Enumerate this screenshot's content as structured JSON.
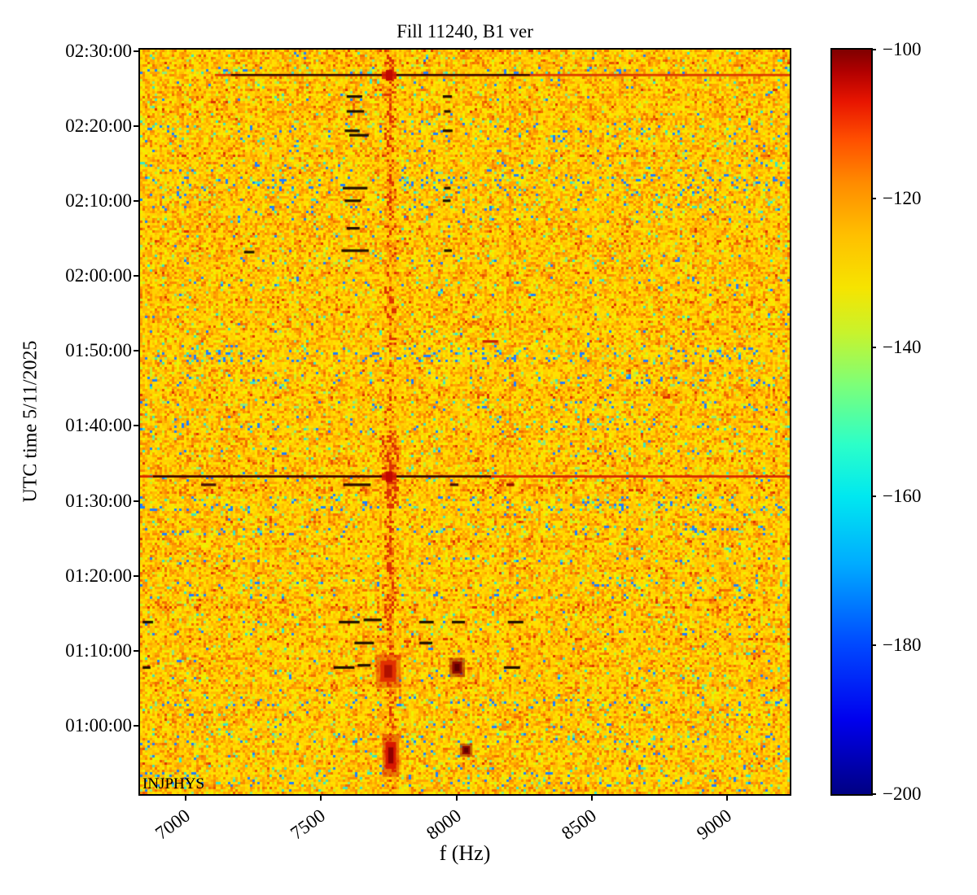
{
  "title": "Fill 11240, B1 ver",
  "watermark": "INJPHYS",
  "axes": {
    "xlabel": "f (Hz)",
    "ylabel": "UTC time 5/11/2025",
    "x_ticks": [
      7000,
      7500,
      8000,
      8500,
      9000
    ],
    "y_ticks": [
      "02:30:00",
      "02:20:00",
      "02:10:00",
      "02:00:00",
      "01:50:00",
      "01:40:00",
      "01:30:00",
      "01:20:00",
      "01:10:00",
      "01:00:00"
    ]
  },
  "colorbar": {
    "vmin": -200,
    "vmax": -100,
    "ticks": [
      -100,
      -120,
      -140,
      -160,
      -180,
      -200
    ],
    "colormap": "jet"
  },
  "chart_data": {
    "type": "heatmap",
    "title": "Fill 11240, B1 ver",
    "xlabel": "f (Hz)",
    "ylabel": "UTC time 5/11/2025",
    "x_range_hz": [
      6832,
      9231
    ],
    "x_tick_values_hz": [
      7000,
      7500,
      8000,
      8500,
      9000
    ],
    "time_axis_utc": {
      "date": "5/11/2025",
      "start_bottom": "00:50:55",
      "end_top": "02:30:10",
      "tick_labels": [
        "02:30:00",
        "02:20:00",
        "02:10:00",
        "02:00:00",
        "01:50:00",
        "01:40:00",
        "01:30:00",
        "01:20:00",
        "01:10:00",
        "01:00:00"
      ]
    },
    "value_scale_db": {
      "min": -200,
      "max": -100,
      "tick_values": [
        -100,
        -120,
        -140,
        -160,
        -180,
        -200
      ],
      "colormap": "jet"
    },
    "background_noise_db_approx": [
      -135,
      -120
    ],
    "annotation_text": "INJPHYS",
    "features": {
      "vertical_band": {
        "description": "persistent red spectral line near 7750 Hz, strongest around 01:29-01:38 and 01:10-01:23 UTC",
        "center_hz": 7750,
        "center_frac": 0.3834,
        "segments": [
          [
            0,
            0.034,
            0.5
          ],
          [
            0.034,
            0.21,
            0.55
          ],
          [
            0.21,
            0.36,
            0.45
          ],
          [
            0.36,
            0.52,
            0.28
          ],
          [
            0.52,
            0.615,
            0.85
          ],
          [
            0.615,
            0.67,
            0.45
          ],
          [
            0.67,
            0.78,
            0.68
          ],
          [
            0.78,
            0.85,
            0.55
          ],
          [
            0.85,
            0.93,
            0.32
          ],
          [
            0.93,
            0.97,
            0.45
          ],
          [
            0.97,
            1.0,
            0.3
          ]
        ]
      },
      "faint_vertical_line": {
        "center_hz": 8195,
        "center_frac": 0.5677,
        "strength": 0.45
      },
      "horizontal_lines": [
        {
          "y": 0.034,
          "utc": "02:26:50",
          "base": "#dd3a00",
          "base_from": 0.115,
          "core": "#2d0a00",
          "core_from": 0.14,
          "core_to": 0.6
        },
        {
          "y": 0.5732,
          "utc": "01:33:20",
          "base": "#d82800",
          "base_from": 0.0,
          "core": "#250900",
          "core_from": 0.02,
          "core_to": 0.54
        }
      ],
      "dropout_dashes": {
        "description": "short dark horizontal dropouts near 7590-7660 Hz and 7955-7975 Hz",
        "list": [
          [
            0.318,
            0.342,
            0.063
          ],
          [
            0.318,
            0.345,
            0.083
          ],
          [
            0.315,
            0.338,
            0.109
          ],
          [
            0.322,
            0.352,
            0.115
          ],
          [
            0.312,
            0.35,
            0.186
          ],
          [
            0.315,
            0.34,
            0.203
          ],
          [
            0.318,
            0.338,
            0.24
          ],
          [
            0.31,
            0.352,
            0.27
          ],
          [
            0.466,
            0.48,
            0.063
          ],
          [
            0.468,
            0.478,
            0.083
          ],
          [
            0.466,
            0.481,
            0.109
          ],
          [
            0.468,
            0.478,
            0.186
          ],
          [
            0.466,
            0.478,
            0.203
          ],
          [
            0.468,
            0.48,
            0.27
          ],
          [
            0.16,
            0.176,
            0.272
          ],
          [
            0.527,
            0.551,
            0.392,
            "#cc2000"
          ],
          [
            0.094,
            0.117,
            0.5845,
            "#4a120a"
          ],
          [
            0.313,
            0.355,
            0.5845,
            "#2e0d00"
          ],
          [
            0.477,
            0.49,
            0.5845,
            "#4a120a"
          ],
          [
            0.564,
            0.576,
            0.5845,
            "#8f1200"
          ],
          [
            0.004,
            0.02,
            0.769
          ],
          [
            0.306,
            0.338,
            0.769
          ],
          [
            0.344,
            0.372,
            0.766
          ],
          [
            0.43,
            0.452,
            0.769
          ],
          [
            0.48,
            0.5,
            0.769
          ],
          [
            0.566,
            0.59,
            0.769
          ],
          [
            0.33,
            0.36,
            0.797
          ],
          [
            0.43,
            0.45,
            0.797
          ],
          [
            0.004,
            0.016,
            0.83
          ],
          [
            0.298,
            0.33,
            0.83
          ],
          [
            0.335,
            0.355,
            0.827
          ],
          [
            0.56,
            0.585,
            0.83
          ]
        ]
      },
      "blobs": [
        {
          "x": 0.382,
          "y": 0.835,
          "w": 0.024,
          "h": 0.028,
          "c": "#e23000",
          "core": "#b01000",
          "utc": "01:08",
          "hz": 7750
        },
        {
          "x": 0.488,
          "y": 0.83,
          "w": 0.015,
          "h": 0.016,
          "c": "#8f0800",
          "core": "#5e0000",
          "utc": "01:08",
          "hz": 8005
        },
        {
          "x": 0.386,
          "y": 0.948,
          "w": 0.016,
          "h": 0.036,
          "c": "#d81800",
          "core": "#8f0000",
          "utc": "00:56",
          "hz": 7760
        },
        {
          "x": 0.502,
          "y": 0.941,
          "w": 0.012,
          "h": 0.011,
          "c": "#8f0800",
          "core": "#5e0000",
          "utc": "00:57",
          "hz": 8040
        }
      ]
    }
  }
}
